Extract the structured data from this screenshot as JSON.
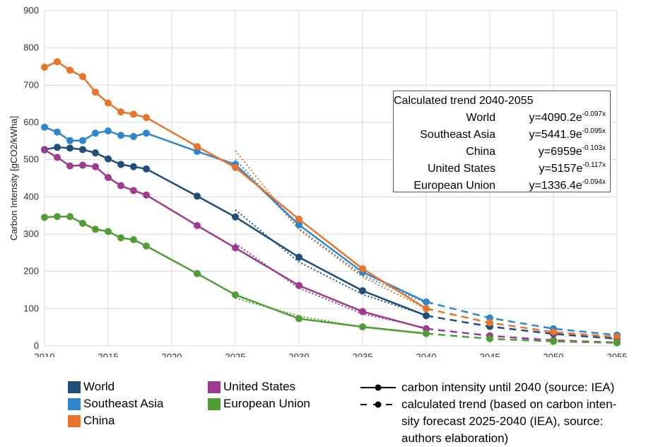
{
  "chart_data": {
    "type": "line",
    "ylabel": "Carbon Intensity [gCO2/kWha]",
    "xlim": [
      2010,
      2055
    ],
    "ylim": [
      0,
      900
    ],
    "x_ticks": [
      "2010",
      "2015",
      "2020",
      "2025",
      "2030",
      "2035",
      "2040",
      "2045",
      "2050",
      "2055"
    ],
    "y_ticks": [
      "0",
      "100",
      "200",
      "300",
      "400",
      "500",
      "600",
      "700",
      "800",
      "900"
    ],
    "grid": true,
    "series": [
      {
        "name": "World",
        "color": "#1f4e79",
        "actual": [
          [
            2010,
            527
          ],
          [
            2011,
            533
          ],
          [
            2012,
            531
          ],
          [
            2013,
            527
          ],
          [
            2014,
            518
          ],
          [
            2015,
            502
          ],
          [
            2016,
            487
          ],
          [
            2017,
            481
          ],
          [
            2018,
            475
          ],
          [
            2022,
            402
          ],
          [
            2025,
            346
          ],
          [
            2030,
            238
          ],
          [
            2035,
            148
          ],
          [
            2040,
            81
          ]
        ],
        "trend": [
          [
            2040,
            81
          ],
          [
            2045,
            52
          ],
          [
            2050,
            32
          ],
          [
            2055,
            19
          ]
        ],
        "fit": [
          [
            2025,
            365
          ],
          [
            2030,
            225
          ],
          [
            2035,
            138
          ],
          [
            2040,
            82
          ]
        ]
      },
      {
        "name": "Southeast Asia",
        "color": "#2e86cc",
        "actual": [
          [
            2010,
            587
          ],
          [
            2011,
            574
          ],
          [
            2012,
            551
          ],
          [
            2013,
            551
          ],
          [
            2014,
            571
          ],
          [
            2015,
            577
          ],
          [
            2016,
            565
          ],
          [
            2017,
            562
          ],
          [
            2018,
            571
          ],
          [
            2022,
            522
          ],
          [
            2025,
            487
          ],
          [
            2030,
            325
          ],
          [
            2035,
            198
          ],
          [
            2040,
            118
          ]
        ],
        "trend": [
          [
            2040,
            118
          ],
          [
            2045,
            75
          ],
          [
            2050,
            46
          ],
          [
            2055,
            29
          ]
        ],
        "fit": [
          [
            2025,
            500
          ],
          [
            2030,
            315
          ],
          [
            2035,
            190
          ],
          [
            2040,
            115
          ]
        ]
      },
      {
        "name": "China",
        "color": "#e8732a",
        "actual": [
          [
            2010,
            748
          ],
          [
            2011,
            763
          ],
          [
            2012,
            740
          ],
          [
            2013,
            723
          ],
          [
            2014,
            681
          ],
          [
            2015,
            652
          ],
          [
            2016,
            628
          ],
          [
            2017,
            622
          ],
          [
            2018,
            613
          ],
          [
            2022,
            535
          ],
          [
            2025,
            479
          ],
          [
            2030,
            340
          ],
          [
            2035,
            207
          ],
          [
            2040,
            100
          ]
        ],
        "trend": [
          [
            2040,
            100
          ],
          [
            2045,
            62
          ],
          [
            2050,
            37
          ],
          [
            2055,
            24
          ]
        ],
        "fit": [
          [
            2025,
            524
          ],
          [
            2030,
            312
          ],
          [
            2035,
            185
          ],
          [
            2040,
            100
          ]
        ]
      },
      {
        "name": "United States",
        "color": "#9e3a8f",
        "actual": [
          [
            2010,
            526
          ],
          [
            2011,
            506
          ],
          [
            2012,
            483
          ],
          [
            2013,
            485
          ],
          [
            2014,
            481
          ],
          [
            2015,
            452
          ],
          [
            2016,
            430
          ],
          [
            2017,
            417
          ],
          [
            2018,
            405
          ],
          [
            2022,
            323
          ],
          [
            2025,
            263
          ],
          [
            2030,
            162
          ],
          [
            2035,
            92
          ],
          [
            2040,
            46
          ]
        ],
        "trend": [
          [
            2040,
            46
          ],
          [
            2045,
            27
          ],
          [
            2050,
            15
          ],
          [
            2055,
            9
          ]
        ],
        "fit": [
          [
            2025,
            275
          ],
          [
            2030,
            155
          ],
          [
            2035,
            86
          ],
          [
            2040,
            48
          ]
        ]
      },
      {
        "name": "European Union",
        "color": "#4e9e34",
        "actual": [
          [
            2010,
            345
          ],
          [
            2011,
            347
          ],
          [
            2012,
            347
          ],
          [
            2013,
            329
          ],
          [
            2014,
            313
          ],
          [
            2015,
            307
          ],
          [
            2016,
            290
          ],
          [
            2017,
            285
          ],
          [
            2018,
            268
          ],
          [
            2022,
            194
          ],
          [
            2025,
            137
          ],
          [
            2030,
            73
          ],
          [
            2035,
            51
          ],
          [
            2040,
            33
          ]
        ],
        "trend": [
          [
            2040,
            33
          ],
          [
            2045,
            19
          ],
          [
            2050,
            12
          ],
          [
            2055,
            8
          ]
        ],
        "fit": [
          [
            2025,
            128
          ],
          [
            2030,
            80
          ],
          [
            2035,
            50
          ],
          [
            2040,
            32
          ]
        ]
      }
    ]
  },
  "trend_box": {
    "title": "Calculated trend 2040-2055",
    "rows": [
      {
        "name": "World",
        "base": "y=4090.2e",
        "exp": "-0.097x"
      },
      {
        "name": "Southeast Asia",
        "base": "y=5441.9e",
        "exp": "-0.095x"
      },
      {
        "name": "China",
        "base": "y=6959e",
        "exp": "-0.103x"
      },
      {
        "name": "United States",
        "base": "y=5157e",
        "exp": "-0.117x"
      },
      {
        "name": "European Union",
        "base": "y=1336.4e",
        "exp": "-0.094x"
      }
    ]
  },
  "legend": {
    "world": "World",
    "southeast_asia": "Southeast Asia",
    "china": "China",
    "united_states": "United States",
    "european_union": "European Union",
    "line_actual": "carbon intensity until 2040 (source: IEA)",
    "line_trend_1": "calculated trend (based on carbon inten-",
    "line_trend_2": "sity forecast 2025-2040 (IEA), source:",
    "line_trend_3": "authors elaboration)"
  }
}
